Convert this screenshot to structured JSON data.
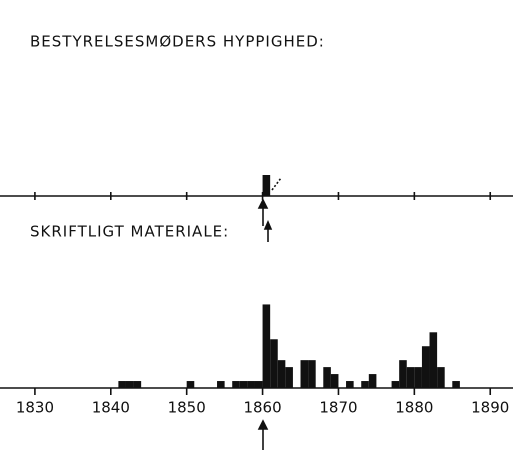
{
  "chart_data": [
    {
      "type": "bar",
      "title": "BESTYRELSESMØDERS HYPPIGHED:",
      "x": [
        1860
      ],
      "values": [
        3
      ],
      "color": "#111111",
      "xlim": [
        1825.4,
        1893
      ],
      "ylim": [
        0,
        28
      ]
    },
    {
      "type": "bar",
      "title": "SKRIFTLIGT MATERIALE:",
      "x": [
        1841,
        1842,
        1843,
        1850,
        1854,
        1856,
        1857,
        1858,
        1859,
        1860,
        1861,
        1862,
        1863,
        1865,
        1866,
        1868,
        1869,
        1871,
        1873,
        1874,
        1877,
        1878,
        1879,
        1880,
        1881,
        1882,
        1883,
        1885
      ],
      "values": [
        1,
        1,
        1,
        1,
        1,
        1,
        1,
        1,
        1,
        12,
        7,
        4,
        3,
        4,
        4,
        3,
        2,
        1,
        1,
        2,
        1,
        4,
        3,
        3,
        6,
        8,
        3,
        1
      ],
      "color": "#111111",
      "xlim": [
        1825.4,
        1893
      ],
      "ylim": [
        0,
        27
      ],
      "xticks": [
        1830,
        1840,
        1850,
        1860,
        1870,
        1880,
        1890
      ]
    }
  ]
}
